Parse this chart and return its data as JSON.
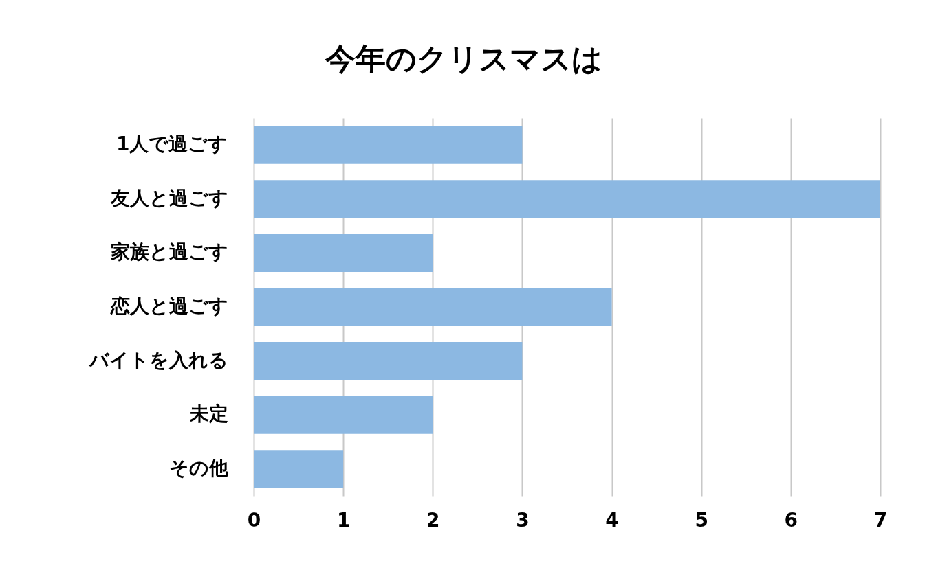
{
  "chart_data": {
    "type": "bar",
    "orientation": "horizontal",
    "title": "今年のクリスマスは",
    "categories": [
      "1人で過ごす",
      "友人と過ごす",
      "家族と過ごす",
      "恋人と過ごす",
      "バイトを入れる",
      "未定",
      "その他"
    ],
    "values": [
      3,
      7,
      2,
      4,
      3,
      2,
      1
    ],
    "color": "#8cb8e2",
    "xlim": [
      0,
      7
    ],
    "xticks": [
      0,
      1,
      2,
      3,
      4,
      5,
      6,
      7
    ],
    "grid": "x"
  }
}
